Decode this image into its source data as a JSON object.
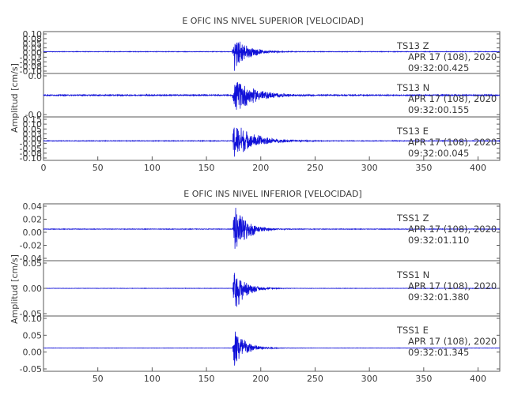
{
  "chart_data": [
    {
      "type": "line",
      "title": "E OFIC INS NIVEL SUPERIOR [VELOCIDAD]",
      "ylabel": "Amplitud [cm/s]",
      "xlim": [
        0,
        420
      ],
      "xticks": [
        "0",
        "50",
        "100",
        "150",
        "200",
        "250",
        "300",
        "350",
        "400"
      ],
      "panels": [
        {
          "station": "TS13",
          "component": "Z",
          "date": "APR 17 (108), 2020",
          "time": "09:32:00.425",
          "ylim": [
            -0.13,
            0.12
          ],
          "yticks": [
            "0.10",
            "0.08",
            "0.05",
            "0.03",
            "0.00",
            "-0.03",
            "-0.05",
            "-0.08",
            "-0.10"
          ],
          "onset": 173.5,
          "peak_time": 176,
          "peak_pos": 0.1,
          "peak_neg": -0.12,
          "decay": 12,
          "noise": 0.0015
        },
        {
          "station": "TS13",
          "component": "N",
          "date": "APR 17 (108), 2020",
          "time": "09:32:00.155",
          "ylim": [
            -0.05,
            0.05
          ],
          "yticks": [
            "0.0",
            "-0.0"
          ],
          "onset": 173.5,
          "peak_time": 177,
          "peak_pos": 0.04,
          "peak_neg": -0.045,
          "decay": 18,
          "noise": 0.0012
        },
        {
          "station": "TS13",
          "component": "E",
          "date": "APR 17 (108), 2020",
          "time": "09:32:00.045",
          "ylim": [
            -0.13,
            0.16
          ],
          "yticks": [
            "0.15",
            "0.10",
            "0.05",
            "0.03",
            "0.00",
            "-0.03",
            "-0.05",
            "-0.08",
            "-0.10"
          ],
          "onset": 174,
          "peak_time": 175,
          "peak_pos": 0.14,
          "peak_neg": -0.13,
          "decay": 18,
          "noise": 0.002
        }
      ]
    },
    {
      "type": "line",
      "title": "E OFIC INS NIVEL INFERIOR [VELOCIDAD]",
      "ylabel": "Amplitud [cm/s]",
      "xlim": [
        0,
        420
      ],
      "xticks": [
        "50",
        "100",
        "150",
        "200",
        "250",
        "300",
        "350",
        "400"
      ],
      "panels": [
        {
          "station": "TSS1",
          "component": "Z",
          "date": "APR 17 (108), 2020",
          "time": "09:32:01.110",
          "ylim": [
            -0.05,
            0.04
          ],
          "yticks": [
            "0.04",
            "0.02",
            "0.00",
            "-0.02",
            "-0.04"
          ],
          "onset": 174,
          "peak_time": 176,
          "peak_pos": 0.038,
          "peak_neg": -0.048,
          "decay": 11,
          "noise": 0.0004
        },
        {
          "station": "TSS1",
          "component": "N",
          "date": "APR 17 (108), 2020",
          "time": "09:32:01.380",
          "ylim": [
            -0.08,
            0.08
          ],
          "yticks": [
            "0.05",
            "0.00",
            "-0.05"
          ],
          "onset": 174,
          "peak_time": 175.5,
          "peak_pos": 0.05,
          "peak_neg": -0.075,
          "decay": 10,
          "noise": 0.0005
        },
        {
          "station": "TSS1",
          "component": "E",
          "date": "APR 17 (108), 2020",
          "time": "09:32:01.345",
          "ylim": [
            -0.08,
            0.11
          ],
          "yticks": [
            "0.10",
            "0.05",
            "0.00",
            "-0.05"
          ],
          "onset": 174,
          "peak_time": 175.5,
          "peak_pos": 0.08,
          "peak_neg": -0.075,
          "decay": 10,
          "noise": 0.0005
        }
      ]
    }
  ]
}
